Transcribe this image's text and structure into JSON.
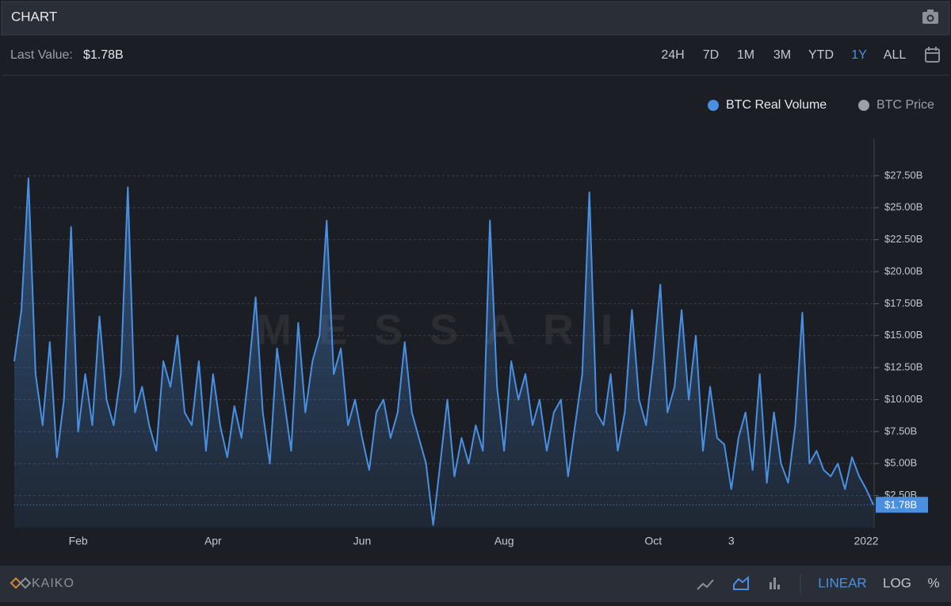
{
  "header": {
    "title": "CHART"
  },
  "toolbar": {
    "last_value_label": "Last Value:",
    "ranges": [
      "24H",
      "7D",
      "1M",
      "3M",
      "YTD",
      "1Y",
      "ALL"
    ],
    "active_range": "1Y"
  },
  "chart_data": {
    "type": "area",
    "watermark": "MESSARI",
    "categories": [
      null,
      null,
      null,
      null,
      null,
      null,
      null,
      null,
      null,
      "Feb",
      null,
      null,
      null,
      null,
      null,
      null,
      null,
      null,
      null,
      null,
      null,
      null,
      null,
      null,
      null,
      null,
      null,
      null,
      "Apr",
      null,
      null,
      null,
      null,
      null,
      null,
      null,
      null,
      null,
      null,
      null,
      null,
      null,
      null,
      null,
      null,
      null,
      null,
      null,
      null,
      "Jun",
      null,
      null,
      null,
      null,
      null,
      null,
      null,
      null,
      null,
      null,
      null,
      null,
      null,
      null,
      null,
      null,
      null,
      null,
      null,
      "Aug",
      null,
      null,
      null,
      null,
      null,
      null,
      null,
      null,
      null,
      null,
      null,
      null,
      null,
      null,
      null,
      null,
      null,
      null,
      null,
      null,
      "Oct",
      null,
      null,
      null,
      null,
      null,
      null,
      null,
      null,
      null,
      null,
      "3",
      null,
      null,
      null,
      null,
      null,
      null,
      null,
      null,
      null,
      null,
      null,
      null,
      null,
      null,
      null,
      null,
      null,
      null,
      "2022",
      null
    ],
    "series": [
      {
        "name": "BTC Real Volume",
        "color": "#4a90e2",
        "values": [
          13,
          17,
          27.3,
          12,
          8,
          14.5,
          5.5,
          10,
          23.5,
          7.5,
          12,
          8,
          16.5,
          10,
          8,
          12,
          26.6,
          9,
          11,
          8,
          6,
          13,
          11,
          15,
          9,
          8,
          13,
          6,
          12,
          8,
          5.5,
          9.5,
          7,
          12,
          18,
          9,
          5,
          14,
          10,
          6,
          16,
          9,
          13,
          15,
          24,
          12,
          14,
          8,
          10,
          7,
          4.5,
          9,
          10,
          7,
          9,
          14.5,
          9,
          7,
          5,
          0.2,
          5,
          10,
          4,
          7,
          5,
          8,
          6,
          24,
          11,
          6,
          13,
          10,
          12,
          8,
          10,
          6,
          9,
          10,
          4,
          8,
          12,
          26.2,
          9,
          8,
          12,
          6,
          9,
          17,
          10,
          8,
          13,
          19,
          9,
          11,
          17,
          10,
          15,
          6,
          11,
          7,
          6.5,
          3,
          7,
          9,
          4.5,
          12,
          3.5,
          9,
          5,
          3.5,
          8,
          16.8,
          5,
          6,
          4.5,
          4,
          5,
          3,
          5.5,
          4,
          3,
          1.78
        ]
      }
    ],
    "inactive_series": [
      {
        "name": "BTC Price",
        "color": "#9aa0a6"
      }
    ],
    "last_value": {
      "value": 1.78,
      "label": "$1.78B"
    },
    "ylim": [
      0,
      30.4
    ],
    "yticks": [
      {
        "value": 2.5,
        "label": "$2.50B"
      },
      {
        "value": 5,
        "label": "$5.00B"
      },
      {
        "value": 7.5,
        "label": "$7.50B"
      },
      {
        "value": 10,
        "label": "$10.00B"
      },
      {
        "value": 12.5,
        "label": "$12.50B"
      },
      {
        "value": 15,
        "label": "$15.00B"
      },
      {
        "value": 17.5,
        "label": "$17.50B"
      },
      {
        "value": 20,
        "label": "$20.00B"
      },
      {
        "value": 22.5,
        "label": "$22.50B"
      },
      {
        "value": 25,
        "label": "$25.00B"
      },
      {
        "value": 27.5,
        "label": "$27.50B"
      }
    ],
    "grid": true
  },
  "footer": {
    "brand": "KAIKO",
    "scales": [
      "LINEAR",
      "LOG",
      "%"
    ],
    "active_scale": "LINEAR"
  }
}
